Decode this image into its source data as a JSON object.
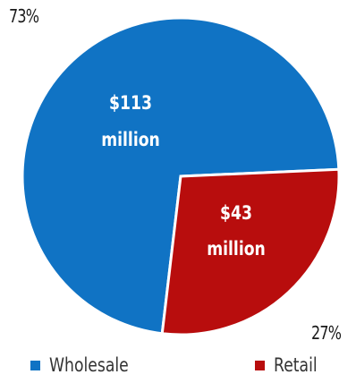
{
  "chart_data": {
    "type": "pie",
    "series": [
      {
        "name": "Wholesale",
        "value": 113,
        "percent_label": "73%",
        "label_line1": "$113",
        "label_line2": "million",
        "color": "#1073c4"
      },
      {
        "name": "Retail",
        "value": 43,
        "percent_label": "27%",
        "label_line1": "$43",
        "label_line2": "million",
        "color": "#b80d0d"
      }
    ],
    "legend_position": "bottom"
  }
}
